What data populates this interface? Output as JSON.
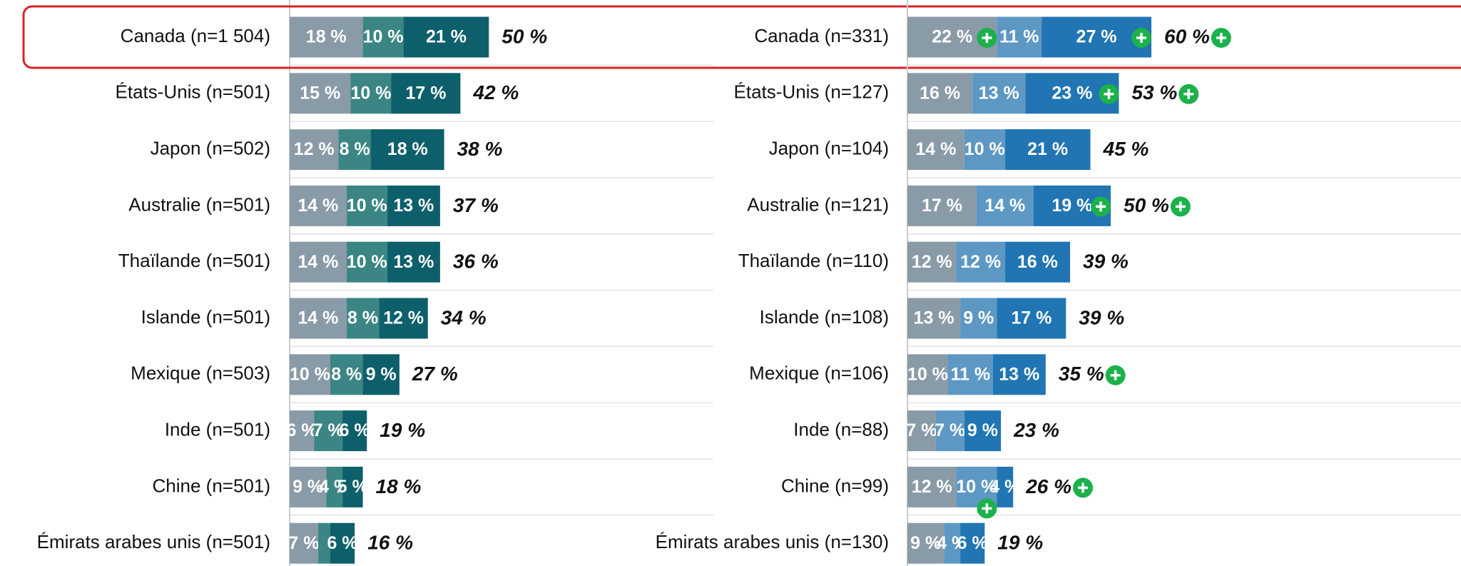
{
  "chart_data": [
    {
      "type": "stacked-bar",
      "categories": [
        "Canada (n=1 504)",
        "États-Unis (n=501)",
        "Japon (n=502)",
        "Australie (n=501)",
        "Thaïlande (n=501)",
        "Islande (n=501)",
        "Mexique (n=503)",
        "Inde (n=501)",
        "Chine (n=501)",
        "Émirats arabes unis (n=501)"
      ],
      "series": [
        {
          "color": "#8a9ba8",
          "values": [
            18,
            15,
            12,
            14,
            14,
            14,
            10,
            6,
            9,
            7
          ],
          "value_labels": [
            "18 %",
            "15 %",
            "12 %",
            "14 %",
            "14 %",
            "14 %",
            "10 %",
            "6 %",
            "9 %",
            "7 %"
          ]
        },
        {
          "color": "#3b8684",
          "values": [
            10,
            10,
            8,
            10,
            10,
            8,
            8,
            7,
            4,
            3
          ],
          "value_labels": [
            "10 %",
            "10 %",
            "8 %",
            "10 %",
            "10 %",
            "8 %",
            "8 %",
            "7 %",
            "4 %",
            null
          ]
        },
        {
          "color": "#0d5f6b",
          "values": [
            21,
            17,
            18,
            13,
            13,
            12,
            9,
            6,
            5,
            6
          ],
          "value_labels": [
            "21 %",
            "17 %",
            "18 %",
            "13 %",
            "13 %",
            "12 %",
            "9 %",
            "6 %",
            "5 %",
            "6 %"
          ]
        }
      ],
      "totals": [
        50,
        42,
        38,
        37,
        36,
        34,
        27,
        19,
        18,
        16
      ],
      "total_labels": [
        "50 %",
        "42 %",
        "38 %",
        "37 %",
        "36 %",
        "34 %",
        "27 %",
        "19 %",
        "18 %",
        "16 %"
      ],
      "highlight": 0
    },
    {
      "type": "stacked-bar",
      "categories": [
        "Canada (n=331)",
        "États-Unis (n=127)",
        "Japon (n=104)",
        "Australie (n=121)",
        "Thaïlande (n=110)",
        "Islande (n=108)",
        "Mexique (n=106)",
        "Inde (n=88)",
        "Chine (n=99)",
        "Émirats arabes unis (n=130)"
      ],
      "series": [
        {
          "color": "#8a9ba8",
          "values": [
            22,
            16,
            14,
            17,
            12,
            13,
            10,
            7,
            12,
            9
          ],
          "value_labels": [
            "22 %",
            "16 %",
            "14 %",
            "17 %",
            "12 %",
            "13 %",
            "10 %",
            "7 %",
            "12 %",
            "9 %"
          ],
          "markers": [
            true,
            false,
            false,
            false,
            false,
            false,
            false,
            false,
            false,
            false
          ]
        },
        {
          "color": "#5d98c4",
          "values": [
            11,
            13,
            10,
            14,
            12,
            9,
            11,
            7,
            10,
            4
          ],
          "value_labels": [
            "11 %",
            "13 %",
            "10 %",
            "14 %",
            "12 %",
            "9 %",
            "11 %",
            "7 %",
            "10 %",
            "4 %"
          ],
          "markers": [
            false,
            false,
            false,
            false,
            false,
            false,
            false,
            false,
            true,
            false
          ]
        },
        {
          "color": "#2175b3",
          "values": [
            27,
            23,
            21,
            19,
            16,
            17,
            13,
            9,
            4,
            6
          ],
          "value_labels": [
            "27 %",
            "23 %",
            "21 %",
            "19 %",
            "16 %",
            "17 %",
            "13 %",
            "9 %",
            "4 %",
            "6 %"
          ],
          "markers": [
            true,
            true,
            false,
            true,
            false,
            false,
            false,
            false,
            false,
            false
          ]
        }
      ],
      "totals": [
        60,
        53,
        45,
        50,
        39,
        39,
        35,
        23,
        26,
        19
      ],
      "total_labels": [
        "60 %",
        "53 %",
        "45 %",
        "50 %",
        "39 %",
        "39 %",
        "35 %",
        "23 %",
        "26 %",
        "19 %"
      ],
      "total_markers": [
        true,
        true,
        false,
        true,
        false,
        false,
        true,
        false,
        true,
        false
      ]
    }
  ]
}
